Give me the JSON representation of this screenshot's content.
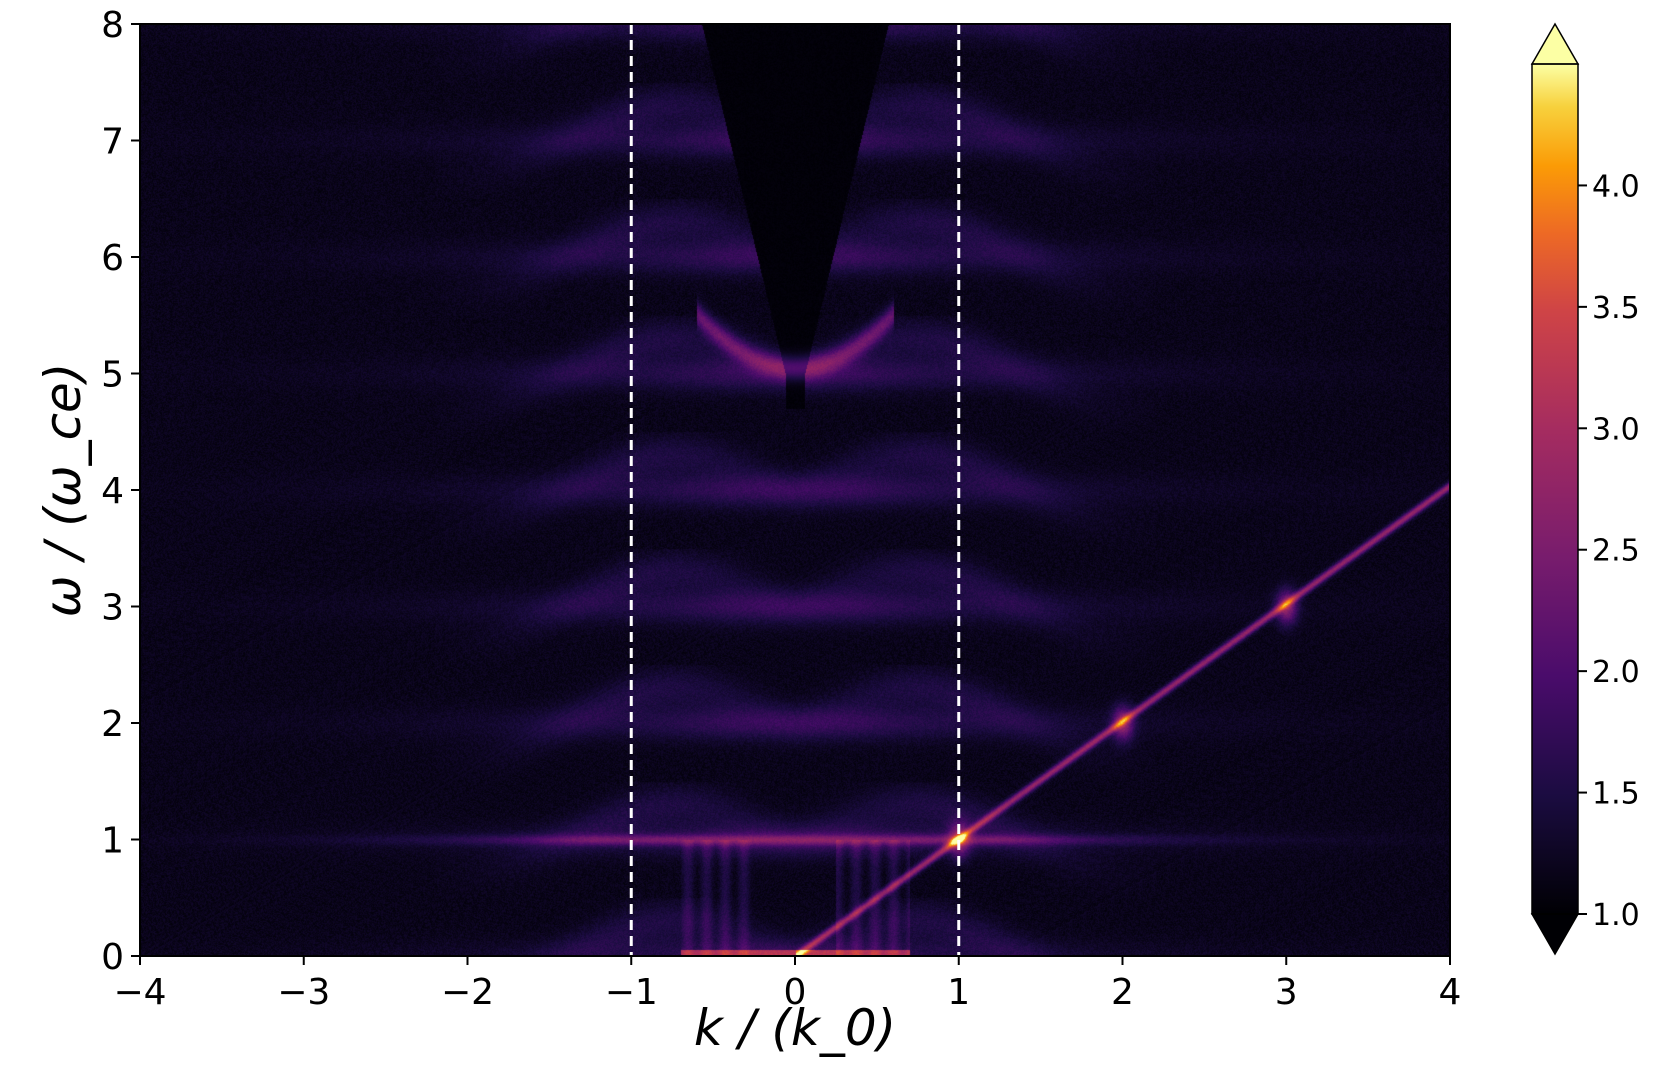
{
  "chart_data": {
    "type": "heatmap",
    "xlabel": "k / (k_0)",
    "ylabel": "ω / (ω_ce)",
    "xlim": [
      -4,
      4
    ],
    "ylim": [
      0,
      8
    ],
    "x_ticks": [
      -4,
      -3,
      -2,
      -1,
      0,
      1,
      2,
      3,
      4
    ],
    "x_tick_labels": [
      "−4",
      "−3",
      "−2",
      "−1",
      "0",
      "1",
      "2",
      "3",
      "4"
    ],
    "y_ticks": [
      0,
      1,
      2,
      3,
      4,
      5,
      6,
      7,
      8
    ],
    "y_tick_labels": [
      "0",
      "1",
      "2",
      "3",
      "4",
      "5",
      "6",
      "7",
      "8"
    ],
    "colorbar": {
      "colormap": "inferno",
      "range": [
        1.0,
        4.5
      ],
      "extend": "both",
      "ticks": [
        1.0,
        1.5,
        2.0,
        2.5,
        3.0,
        3.5,
        4.0
      ],
      "tick_labels": [
        "1.0",
        "1.5",
        "2.0",
        "2.5",
        "3.0",
        "3.5",
        "4.0"
      ]
    },
    "vertical_reference_lines": [
      {
        "x": -1,
        "style": "dashed",
        "color": "#ffffff"
      },
      {
        "x": 1,
        "style": "dashed",
        "color": "#ffffff"
      }
    ],
    "diagonal_mode": {
      "from": [
        0,
        0
      ],
      "to": [
        4,
        4.05
      ],
      "peak_value": 4.0
    },
    "harmonic_bands_omega": [
      1,
      2,
      3,
      4,
      5,
      6,
      7
    ],
    "grid": false,
    "legend": "none"
  }
}
